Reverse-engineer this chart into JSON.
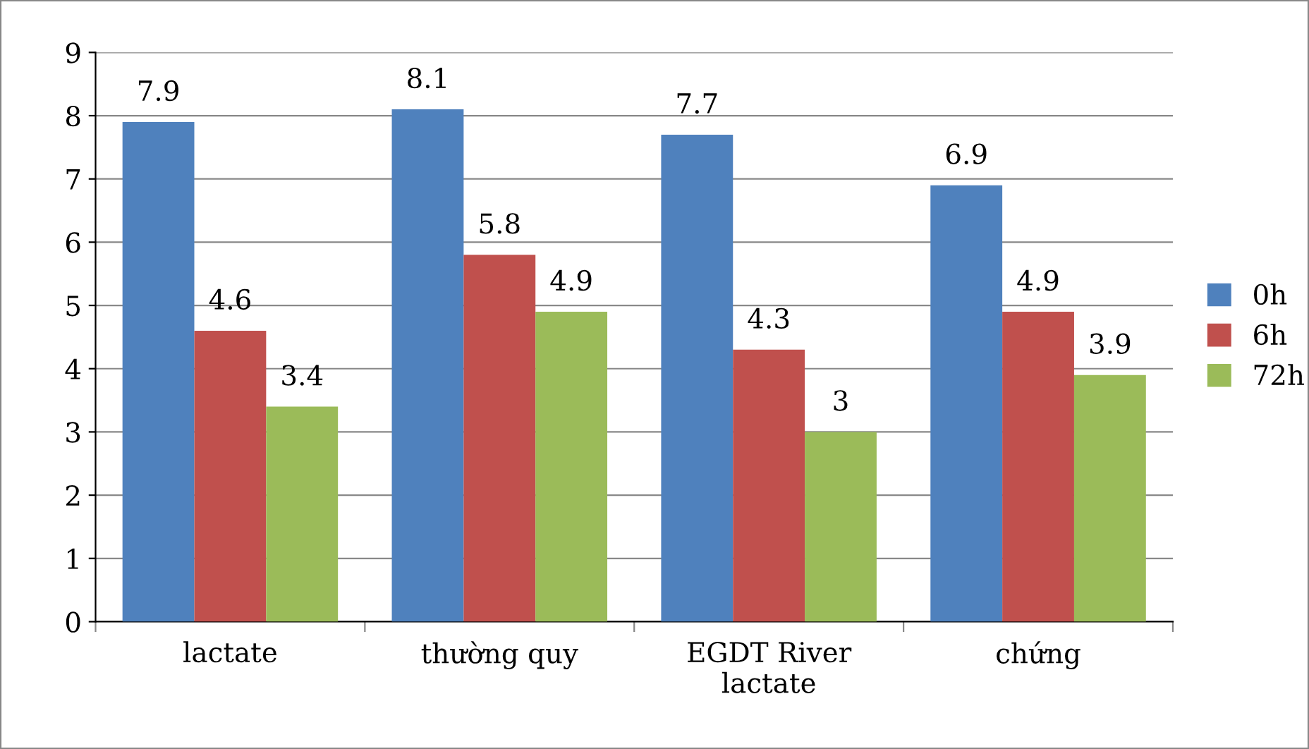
{
  "chart_data": {
    "type": "bar",
    "categories": [
      "lactate",
      "thường quy",
      "EGDT River\nlactate",
      "chứng"
    ],
    "series": [
      {
        "name": "0h",
        "color": "#4f81bd",
        "values": [
          7.9,
          8.1,
          7.7,
          6.9
        ]
      },
      {
        "name": "6h",
        "color": "#c0504d",
        "values": [
          4.6,
          5.8,
          4.3,
          4.9
        ]
      },
      {
        "name": "72h",
        "color": "#9bbb59",
        "values": [
          3.4,
          4.9,
          3,
          3.9
        ]
      }
    ],
    "ylim": [
      0,
      9
    ],
    "yticks": [
      0,
      1,
      2,
      3,
      4,
      5,
      6,
      7,
      8,
      9
    ],
    "grid": "y",
    "legend": "right",
    "data_labels": true
  }
}
